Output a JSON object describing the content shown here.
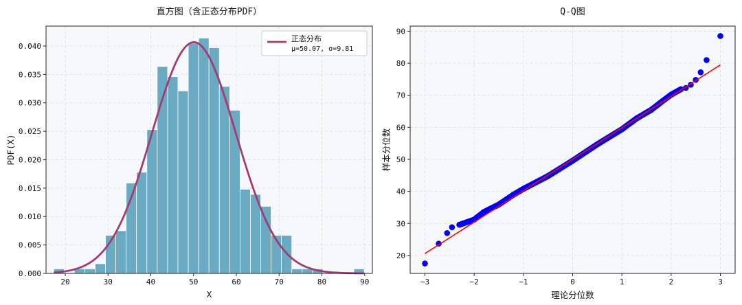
{
  "chart_data": [
    {
      "type": "bar",
      "title": "直方图（含正态分布PDF）",
      "xlabel": "X",
      "ylabel": "PDF(X)",
      "xlim": [
        15.5,
        91.8
      ],
      "ylim": [
        0,
        0.0435
      ],
      "x_ticks": [
        20,
        30,
        40,
        50,
        60,
        70,
        80,
        90
      ],
      "y_ticks": [
        0.0,
        0.005,
        0.01,
        0.015,
        0.02,
        0.025,
        0.03,
        0.035,
        0.04
      ],
      "y_tick_labels": [
        "0.000",
        "0.005",
        "0.010",
        "0.015",
        "0.020",
        "0.025",
        "0.030",
        "0.035",
        "0.040"
      ],
      "grid": true,
      "bin_width": 2.42,
      "bins": [
        {
          "left": 17.3,
          "value": 0.0008
        },
        {
          "left": 19.72,
          "value": 0.0
        },
        {
          "left": 22.14,
          "value": 0.0008
        },
        {
          "left": 24.56,
          "value": 0.0008
        },
        {
          "left": 26.98,
          "value": 0.0017
        },
        {
          "left": 29.4,
          "value": 0.0067
        },
        {
          "left": 31.82,
          "value": 0.0075
        },
        {
          "left": 34.24,
          "value": 0.0159
        },
        {
          "left": 36.66,
          "value": 0.0178
        },
        {
          "left": 39.08,
          "value": 0.0253
        },
        {
          "left": 41.5,
          "value": 0.0364
        },
        {
          "left": 43.92,
          "value": 0.0346
        },
        {
          "left": 46.34,
          "value": 0.0321
        },
        {
          "left": 48.76,
          "value": 0.0405
        },
        {
          "left": 51.18,
          "value": 0.0414
        },
        {
          "left": 53.6,
          "value": 0.0397
        },
        {
          "left": 56.02,
          "value": 0.0329
        },
        {
          "left": 58.44,
          "value": 0.0287
        },
        {
          "left": 60.86,
          "value": 0.0148
        },
        {
          "left": 63.28,
          "value": 0.0139
        },
        {
          "left": 65.7,
          "value": 0.0118
        },
        {
          "left": 68.12,
          "value": 0.0067
        },
        {
          "left": 70.54,
          "value": 0.0067
        },
        {
          "left": 72.96,
          "value": 0.0008
        },
        {
          "left": 75.38,
          "value": 0.0008
        },
        {
          "left": 77.8,
          "value": 0.0008
        },
        {
          "left": 80.22,
          "value": 0.0
        },
        {
          "left": 82.64,
          "value": 0.0
        },
        {
          "left": 85.06,
          "value": 0.0
        },
        {
          "left": 87.48,
          "value": 0.0008
        }
      ],
      "pdf": {
        "mu": 50.07,
        "sigma": 9.81,
        "x_range": [
          17.3,
          89.9
        ]
      },
      "legend": {
        "position": "top-right",
        "label_line1": "正态分布",
        "label_line2": "μ=50.07, σ=9.81"
      },
      "colors": {
        "bar": "#6aaac3",
        "bar_edge": "#ffffff",
        "curve": "#a23b72",
        "grid": "#d8dde3",
        "plot_bg": "#f7f8fa"
      }
    },
    {
      "type": "scatter",
      "title": "Q-Q图",
      "xlabel": "理论分位数",
      "ylabel": "样本分位数",
      "xlim": [
        -3.3,
        3.3
      ],
      "ylim": [
        14.4,
        91.6
      ],
      "x_ticks": [
        -3,
        -2,
        -1,
        0,
        1,
        2,
        3
      ],
      "x_tick_labels": [
        "−3",
        "−2",
        "−1",
        "0",
        "1",
        "2",
        "3"
      ],
      "y_ticks": [
        20,
        30,
        40,
        50,
        60,
        70,
        80,
        90
      ],
      "grid": true,
      "fit_line": {
        "x": [
          -3.0,
          3.0
        ],
        "y": [
          20.6,
          79.5
        ]
      },
      "anchors": [
        {
          "x": -3.0,
          "y": 17.5
        },
        {
          "x": -2.72,
          "y": 23.7
        },
        {
          "x": -2.55,
          "y": 27.0
        },
        {
          "x": -2.45,
          "y": 28.8
        },
        {
          "x": -2.3,
          "y": 29.6
        },
        {
          "x": -2.0,
          "y": 31.2
        },
        {
          "x": -1.8,
          "y": 33.6
        },
        {
          "x": -1.5,
          "y": 35.9
        },
        {
          "x": -1.2,
          "y": 39.0
        },
        {
          "x": -1.0,
          "y": 40.8
        },
        {
          "x": -0.5,
          "y": 44.8
        },
        {
          "x": 0.0,
          "y": 49.6
        },
        {
          "x": 0.5,
          "y": 54.7
        },
        {
          "x": 1.0,
          "y": 59.4
        },
        {
          "x": 1.3,
          "y": 62.8
        },
        {
          "x": 1.6,
          "y": 65.5
        },
        {
          "x": 1.8,
          "y": 67.9
        },
        {
          "x": 2.0,
          "y": 70.2
        },
        {
          "x": 2.2,
          "y": 71.9
        },
        {
          "x": 2.3,
          "y": 72.3
        },
        {
          "x": 2.4,
          "y": 73.3
        },
        {
          "x": 2.5,
          "y": 74.8
        },
        {
          "x": 2.6,
          "y": 77.2
        },
        {
          "x": 2.72,
          "y": 81.0
        },
        {
          "x": 3.0,
          "y": 88.5
        }
      ],
      "n_points": 300,
      "colors": {
        "point": "#0000ff",
        "line": "#ff0000",
        "grid": "#d8dde3",
        "plot_bg": "#f7f8fa"
      }
    }
  ]
}
